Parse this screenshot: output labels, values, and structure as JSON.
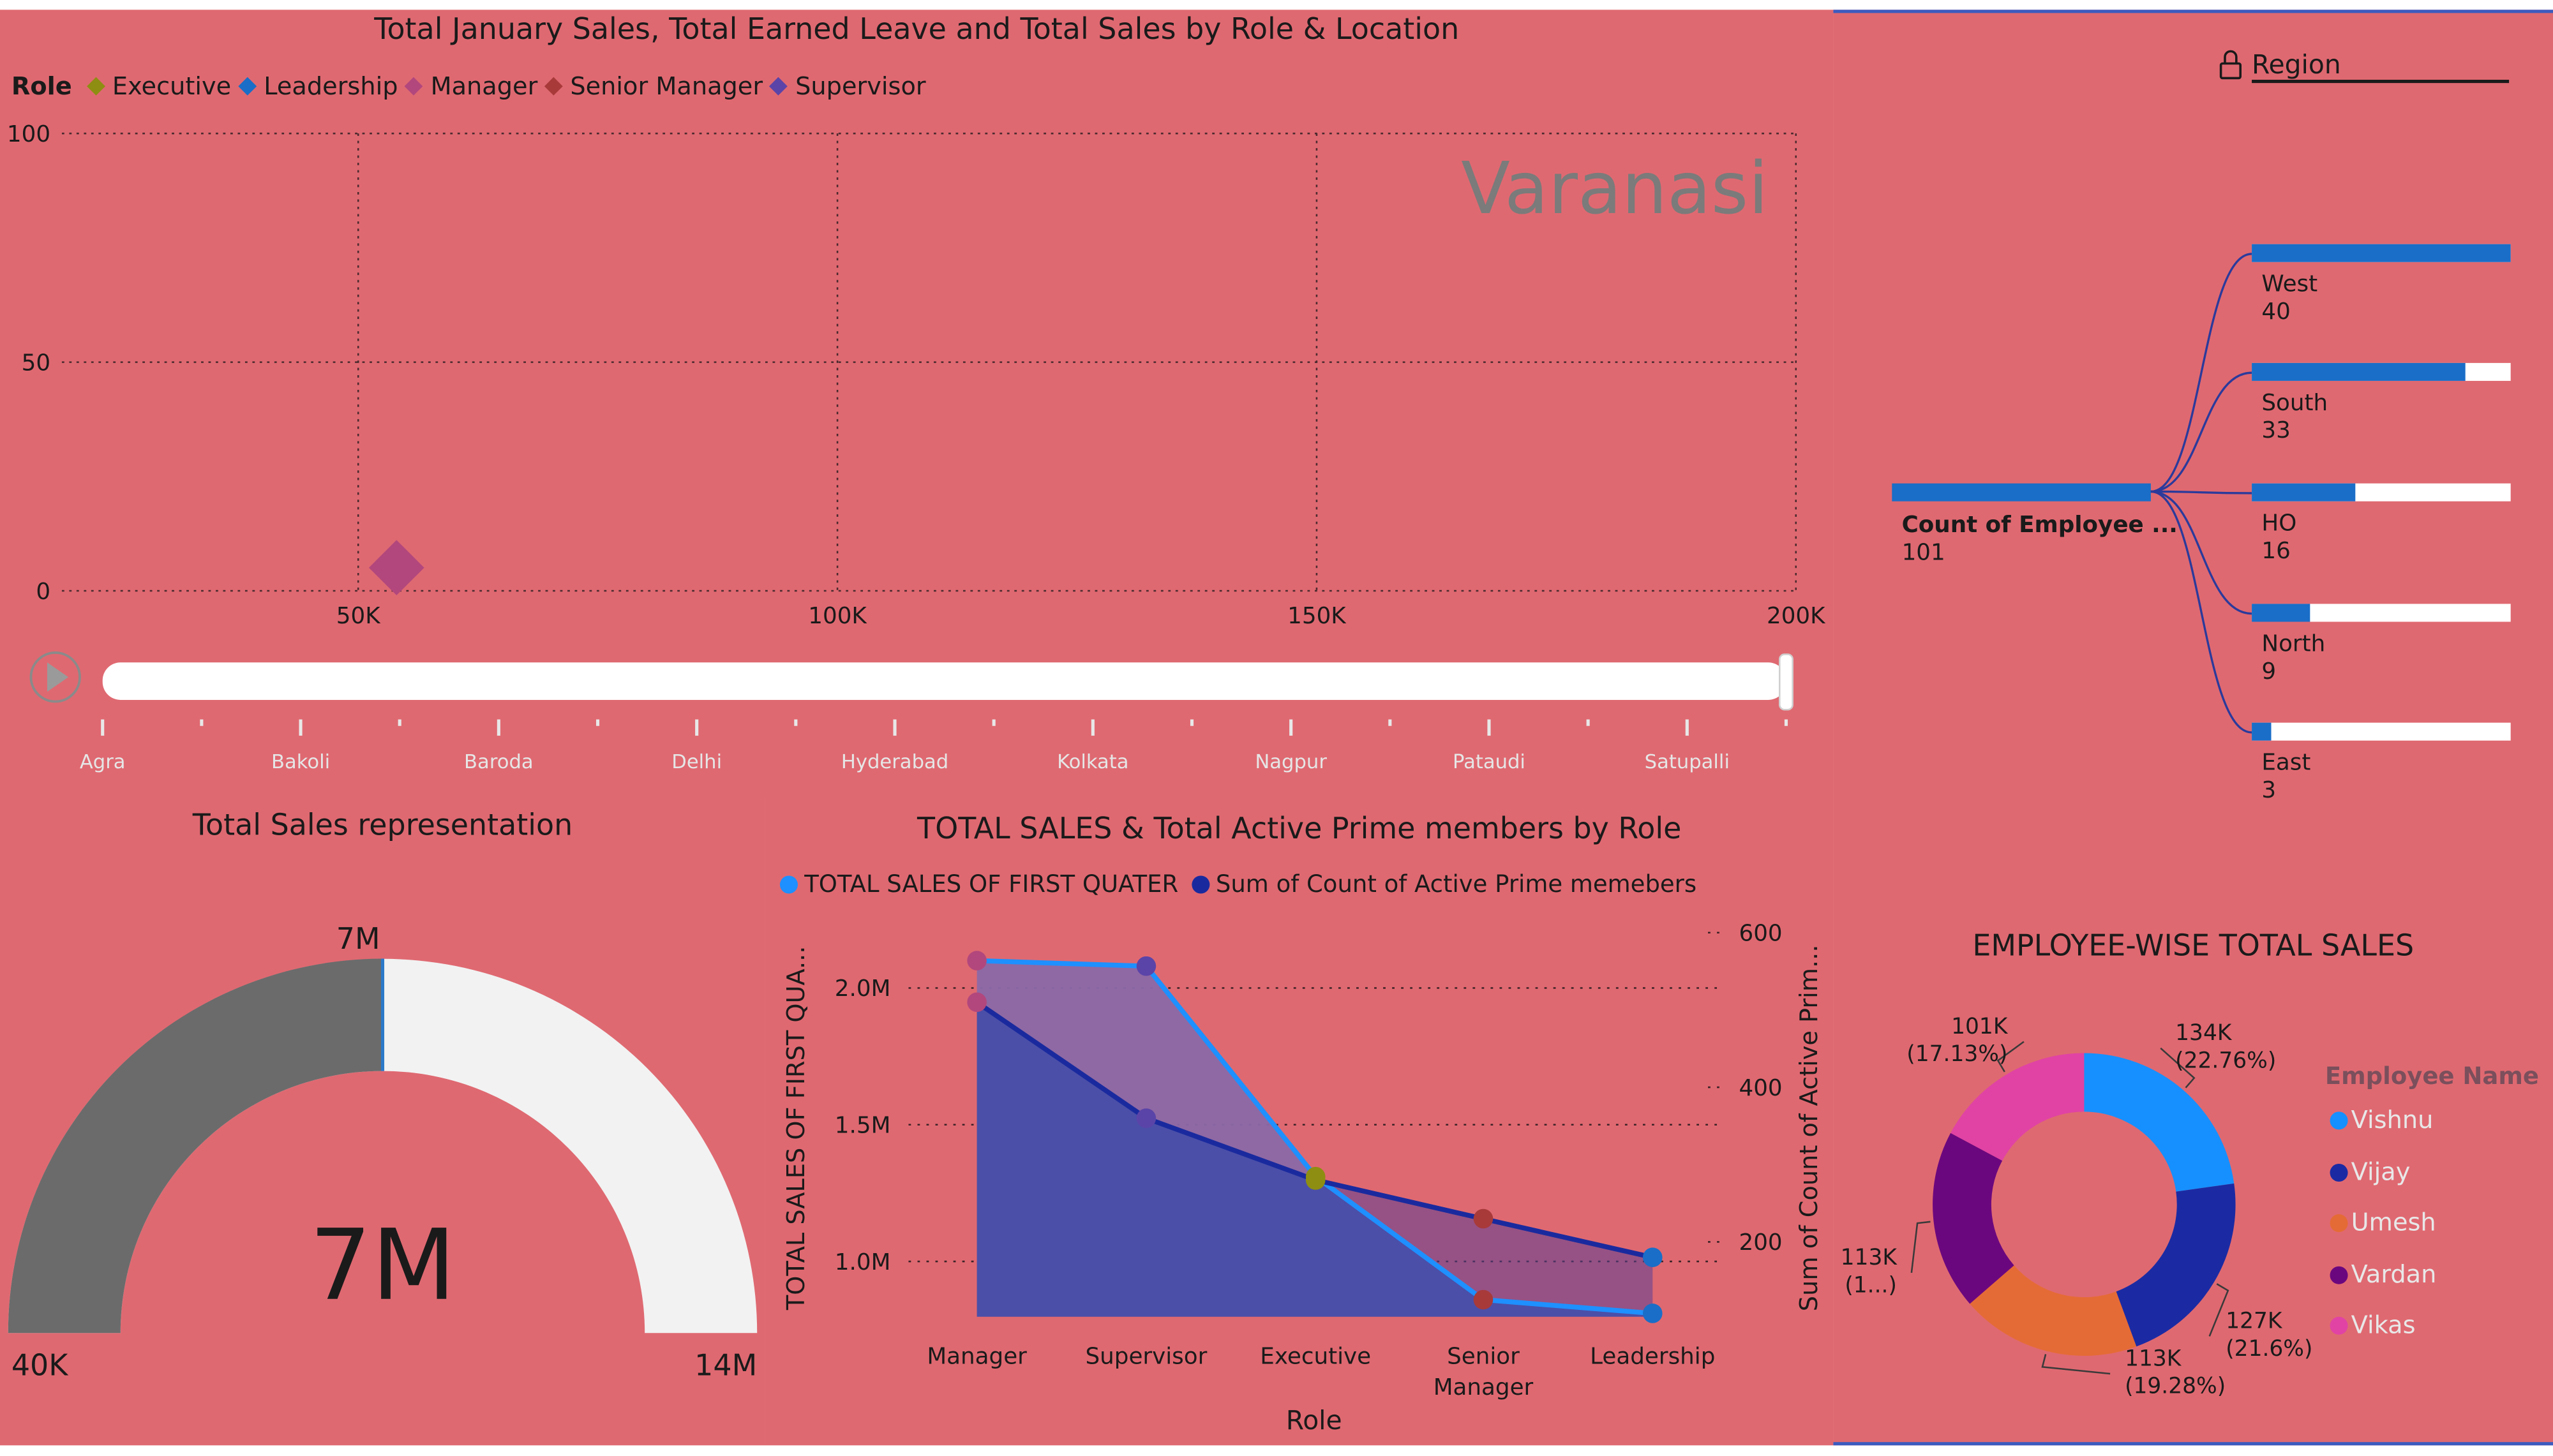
{
  "colors": {
    "background": "#df6971",
    "scatter_manager": "#b2477d",
    "slider_track": "#ffffff",
    "watermark": "#7b7b7b",
    "tree_bar": "#1a6ec7",
    "tree_bar_bg": "#ffffff",
    "tree_line": "#2b3a9b",
    "gauge_fill": "#6b6b6b",
    "gauge_bg": "#f2f2f2",
    "gauge_target": "#2b79c9",
    "area_sales_line": "#1e90ff",
    "area_prime_line": "#1a2a9e",
    "area_fill_dark": "#4b4fa8",
    "area_fill_light": "#8a69a7",
    "donut_vishnu": "#1690ff",
    "donut_vijay": "#1b2aa3",
    "donut_umesh": "#e56b36",
    "donut_vardan": "#6b077e",
    "donut_vikas": "#e043a4"
  },
  "scatter": {
    "title": "Total January Sales, Total Earned Leave and Total Sales by Role & Location",
    "legend_title": "Role",
    "legend": [
      {
        "name": "Executive",
        "color": "#8e8e12"
      },
      {
        "name": "Leadership",
        "color": "#1a6ec7"
      },
      {
        "name": "Manager",
        "color": "#b2477d"
      },
      {
        "name": "Senior Manager",
        "color": "#a83a3a"
      },
      {
        "name": "Supervisor",
        "color": "#5b44a8"
      }
    ],
    "watermark": "Varanasi",
    "play_icon": "play-icon",
    "locations": [
      "Agra",
      "Bakoli",
      "Baroda",
      "Delhi",
      "Hyderabad",
      "Kolkata",
      "Nagpur",
      "Pataudi",
      "Satupalli"
    ]
  },
  "decomposition": {
    "lock_icon": "lock-icon",
    "header": "Region",
    "root_label": "Count of Employee ...",
    "root_value": "101",
    "nodes": [
      {
        "label": "West",
        "value": "40",
        "fraction": 1.0
      },
      {
        "label": "South",
        "value": "33",
        "fraction": 0.825
      },
      {
        "label": "HO",
        "value": "16",
        "fraction": 0.4
      },
      {
        "label": "North",
        "value": "9",
        "fraction": 0.225
      },
      {
        "label": "East",
        "value": "3",
        "fraction": 0.075
      }
    ]
  },
  "gauge": {
    "title": "Total Sales representation",
    "value_label": "7M",
    "target_label": "7M",
    "min_label": "40K",
    "max_label": "14M"
  },
  "area": {
    "title": "TOTAL SALES & Total Active Prime members by Role",
    "legend": [
      {
        "name": "TOTAL SALES OF FIRST QUATER",
        "color": "#1e90ff"
      },
      {
        "name": "Sum of Count of Active Prime memebers",
        "color": "#1a2a9e"
      }
    ],
    "y_left_title": "TOTAL SALES OF FIRST QUA...",
    "y_right_title": "Sum of Count of Active Prim...",
    "x_title": "Role",
    "left_ticks": [
      "2.0M",
      "1.5M",
      "1.0M"
    ],
    "right_ticks": [
      "600",
      "400",
      "200"
    ]
  },
  "donut": {
    "title": "EMPLOYEE-WISE TOTAL SALES",
    "legend_title": "Employee Name",
    "legend": [
      "Vishnu",
      "Vijay",
      "Umesh",
      "Vardan",
      "Vikas"
    ],
    "labels": [
      {
        "value": "134K",
        "pct": "(22.76%)"
      },
      {
        "value": "127K",
        "pct": "(21.6%)"
      },
      {
        "value": "113K",
        "pct": "(19.28%)"
      },
      {
        "value": "113K",
        "pct": "(1...)"
      },
      {
        "value": "101K",
        "pct": "(17.13%)"
      }
    ]
  },
  "chart_data": [
    {
      "type": "scatter",
      "title": "Total January Sales, Total Earned Leave and Total Sales by Role & Location",
      "xlim": [
        25000,
        200000
      ],
      "ylim": [
        0,
        100
      ],
      "x_ticks": [
        "50K",
        "100K",
        "150K",
        "200K"
      ],
      "y_ticks": [
        "100",
        "50",
        "0"
      ],
      "grid": true,
      "series": [
        {
          "name": "Manager",
          "points": [
            {
              "x": 54000,
              "y": 4
            }
          ]
        }
      ]
    },
    {
      "type": "area",
      "title": "TOTAL SALES & Total Active Prime members by Role",
      "categories": [
        "Manager",
        "Supervisor",
        "Executive",
        "Senior Manager",
        "Leadership"
      ],
      "y_left_range": [
        800000,
        2150000
      ],
      "y_right_range": [
        100,
        610
      ],
      "series": [
        {
          "name": "TOTAL SALES OF FIRST QUATER",
          "axis": "left",
          "values": [
            2100000,
            2080000,
            1310000,
            860000,
            810000
          ]
        },
        {
          "name": "Sum of Count of Active Prime memebers",
          "axis": "right",
          "values": [
            510,
            360,
            280,
            230,
            180
          ]
        }
      ]
    },
    {
      "type": "pie",
      "title": "EMPLOYEE-WISE TOTAL SALES",
      "categories": [
        "Vishnu",
        "Vijay",
        "Umesh",
        "Vardan",
        "Vikas"
      ],
      "values": [
        134000,
        127000,
        113000,
        113000,
        101000
      ],
      "percent": [
        22.76,
        21.6,
        19.28,
        19.23,
        17.13
      ],
      "donut": true
    },
    {
      "type": "gauge",
      "title": "Total Sales representation",
      "min": 40000,
      "max": 14000000,
      "value": 7000000,
      "target": 7000000
    }
  ]
}
